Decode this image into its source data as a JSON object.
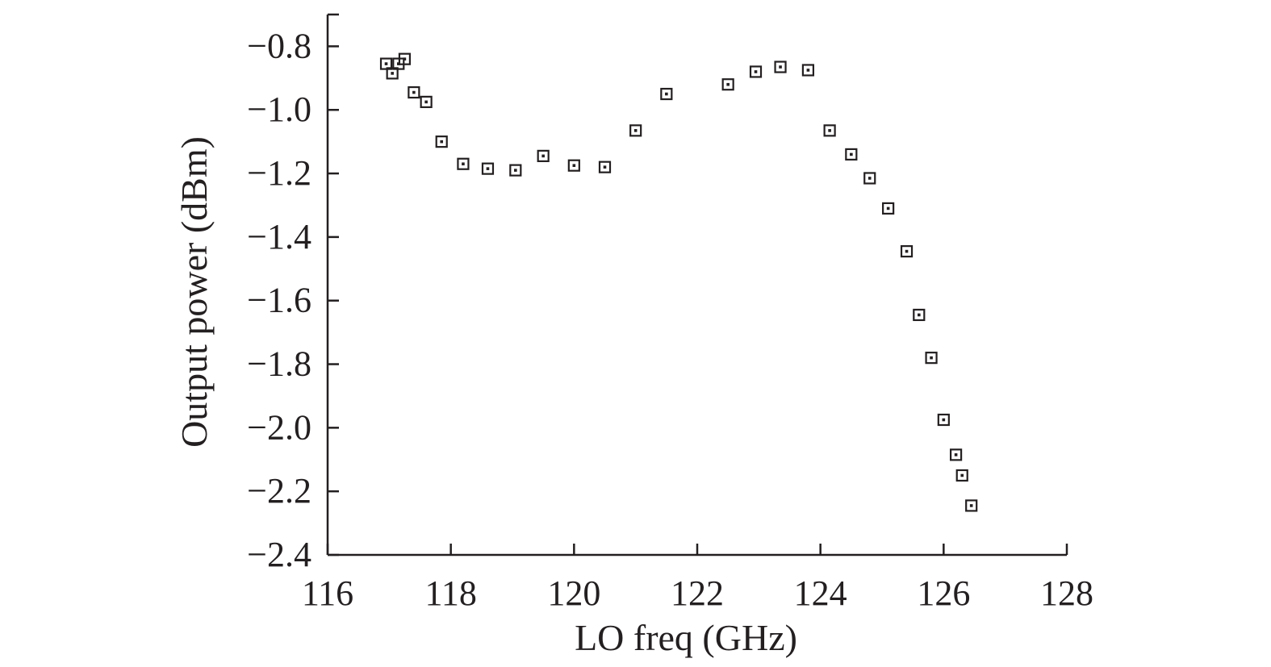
{
  "chart_data": {
    "type": "scatter",
    "xlabel": "LO freq (GHz)",
    "ylabel": "Output power (dBm)",
    "xlim": [
      116,
      128
    ],
    "ylim": [
      -2.4,
      -0.7
    ],
    "xticks": [
      116,
      118,
      120,
      122,
      124,
      126,
      128
    ],
    "xtick_labels": [
      "116",
      "118",
      "120",
      "122",
      "124",
      "126",
      "128"
    ],
    "yticks": [
      -0.8,
      -1.0,
      -1.2,
      -1.4,
      -1.6,
      -1.8,
      -2.0,
      -2.2,
      -2.4
    ],
    "ytick_labels": [
      "−0.8",
      "−1.0",
      "−1.2",
      "−1.4",
      "−1.6",
      "−1.8",
      "−2.0",
      "−2.2",
      "−2.4"
    ],
    "grid": false,
    "marker": "square-with-dot",
    "marker_color": "#231f20",
    "series": [
      {
        "points": [
          [
            116.95,
            -0.855
          ],
          [
            117.05,
            -0.885
          ],
          [
            117.15,
            -0.855
          ],
          [
            117.25,
            -0.84
          ],
          [
            117.4,
            -0.945
          ],
          [
            117.6,
            -0.975
          ],
          [
            117.85,
            -1.1
          ],
          [
            118.2,
            -1.17
          ],
          [
            118.6,
            -1.185
          ],
          [
            119.05,
            -1.19
          ],
          [
            119.5,
            -1.145
          ],
          [
            120.0,
            -1.175
          ],
          [
            120.5,
            -1.18
          ],
          [
            121.0,
            -1.065
          ],
          [
            121.5,
            -0.95
          ],
          [
            122.5,
            -0.92
          ],
          [
            122.95,
            -0.88
          ],
          [
            123.35,
            -0.865
          ],
          [
            123.8,
            -0.875
          ],
          [
            124.15,
            -1.065
          ],
          [
            124.5,
            -1.14
          ],
          [
            124.8,
            -1.215
          ],
          [
            125.1,
            -1.31
          ],
          [
            125.4,
            -1.445
          ],
          [
            125.6,
            -1.645
          ],
          [
            125.8,
            -1.78
          ],
          [
            126.0,
            -1.975
          ],
          [
            126.2,
            -2.085
          ],
          [
            126.3,
            -2.15
          ],
          [
            126.45,
            -2.245
          ]
        ]
      }
    ]
  }
}
